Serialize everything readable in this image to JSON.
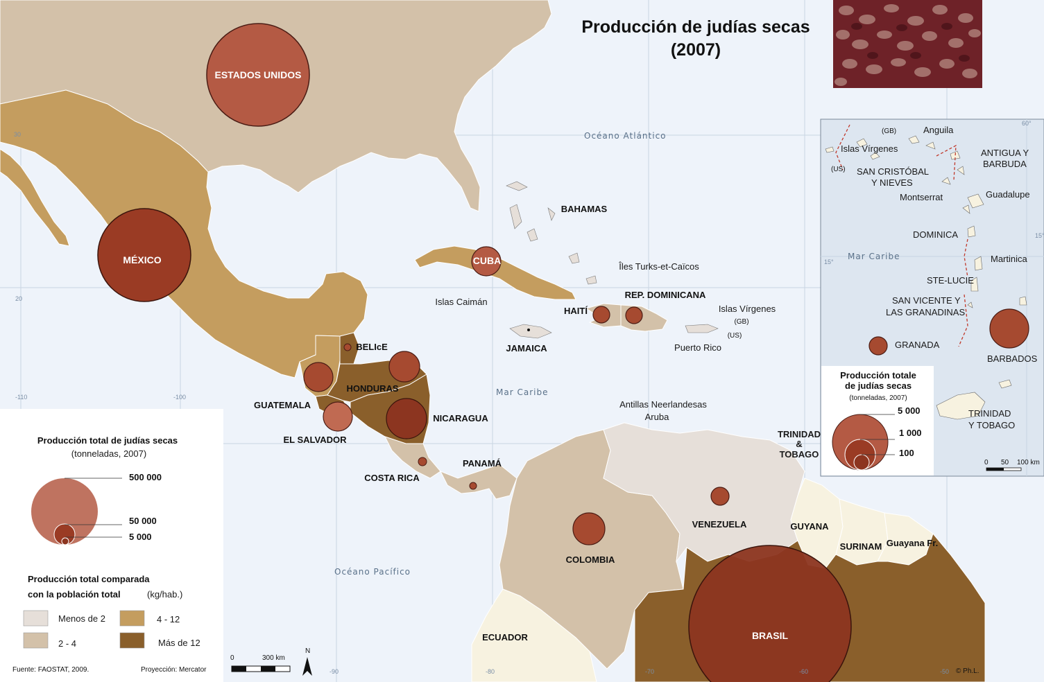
{
  "title": {
    "line1": "Producción de judías secas",
    "line2": "(2007)"
  },
  "seas": {
    "atlantic": "Océano Atlántico",
    "caribbean": "Mar Caribe",
    "pacific": "Océano Pacífico"
  },
  "coordinates": {
    "lat30": "30",
    "lat20": "20",
    "lon110": "-110",
    "lon100": "-100",
    "lon90": "-90",
    "lon80": "-80",
    "lon70": "-70",
    "lon60": "-60",
    "lon50": "-50"
  },
  "countries": {
    "usa": "ESTADOS UNIDOS",
    "mexico": "MÉXICO",
    "cuba": "CUBA",
    "bahamas": "BAHAMAS",
    "turks": "Îles Turks-et-Caïcos",
    "cayman": "Islas Caimán",
    "haiti": "HAITÍ",
    "dominican": "REP. DOMINICANA",
    "jamaica": "JAMAICA",
    "virgin": "Islas Vírgenes",
    "virgin_gb": "(GB)",
    "virgin_us": "(US)",
    "puerto_rico": "Puerto Rico",
    "belize": "BELIcE",
    "honduras": "HONDURAS",
    "guatemala": "GUATEMALA",
    "el_salvador": "EL SALVADOR",
    "nicaragua": "NICARAGUA",
    "costa_rica": "COSTA RICA",
    "panama": "PANAMÁ",
    "antilles": "Antillas Neerlandesas",
    "aruba": "Aruba",
    "trinidad": "TRINIDAD",
    "amp": "&",
    "tobago": "TOBAGO",
    "venezuela": "VENEZUELA",
    "colombia": "COLOMBIA",
    "guyana": "GUYANA",
    "surinam": "SURINAM",
    "guyane": "Guayana Fr.",
    "ecuador": "ECUADOR",
    "brasil": "BRASIL"
  },
  "legend": {
    "prod_title": "Producción total de judías secas",
    "prod_sub": "(tonneladas, 2007)",
    "prod_values": [
      "500 000",
      "50 000",
      "5 000"
    ],
    "ratio_title_1": "Producción total comparada",
    "ratio_title_2": "con la población total",
    "ratio_unit": "(kg/hab.)",
    "classes": [
      {
        "label": "Menos de 2",
        "color": "#e6dfd9"
      },
      {
        "label": "2 - 4",
        "color": "#d3c1a9"
      },
      {
        "label": "4 - 12",
        "color": "#c49d5f"
      },
      {
        "label": "Más de 12",
        "color": "#8a5f2b"
      }
    ],
    "scale_start": "0",
    "scale_end": "300 km",
    "north": "N",
    "source": "Fuente: FAOSTAT, 2009.",
    "projection": "Proyección: Mercator",
    "copyright": "© Ph.L."
  },
  "inset": {
    "labels": {
      "gb": "(GB)",
      "anguilla": "Anguila",
      "virgin": "Islas Vírgenes",
      "us": "(US)",
      "antigua_1": "ANTIGUA Y",
      "antigua_2": "BARBUDA",
      "stkitts_1": "SAN CRISTÓBAL",
      "stkitts_2": "Y NIEVES",
      "montserrat": "Montserrat",
      "guadeloupe": "Guadalupe",
      "dominica": "DOMINICA",
      "martinique": "Martinica",
      "sea": "Mar Caribe",
      "stlucia": "STE-LUCIE",
      "stvincent_1": "SAN VICENTE Y",
      "stvincent_2": "LAS GRANADINAS",
      "grenada": "GRANADA",
      "barbados": "BARBADOS",
      "trinidad_1": "TRINIDAD",
      "trinidad_2": "Y TOBAGO"
    },
    "coords": {
      "lon60": "60°",
      "lat15": "15°",
      "lat15b": "15°"
    },
    "legend_title_1": "Producción totale",
    "legend_title_2": "de judías secas",
    "legend_sub": "(tonneladas, 2007)",
    "legend_values": [
      "5 000",
      "1 000",
      "100"
    ],
    "scale": [
      "0",
      "50",
      "100 km"
    ]
  },
  "colors": {
    "sea": "#eef3fa",
    "symbol": "#b45a44",
    "symbol_stroke": "#4a1c14",
    "brazil_symbol": "#8c3520"
  }
}
